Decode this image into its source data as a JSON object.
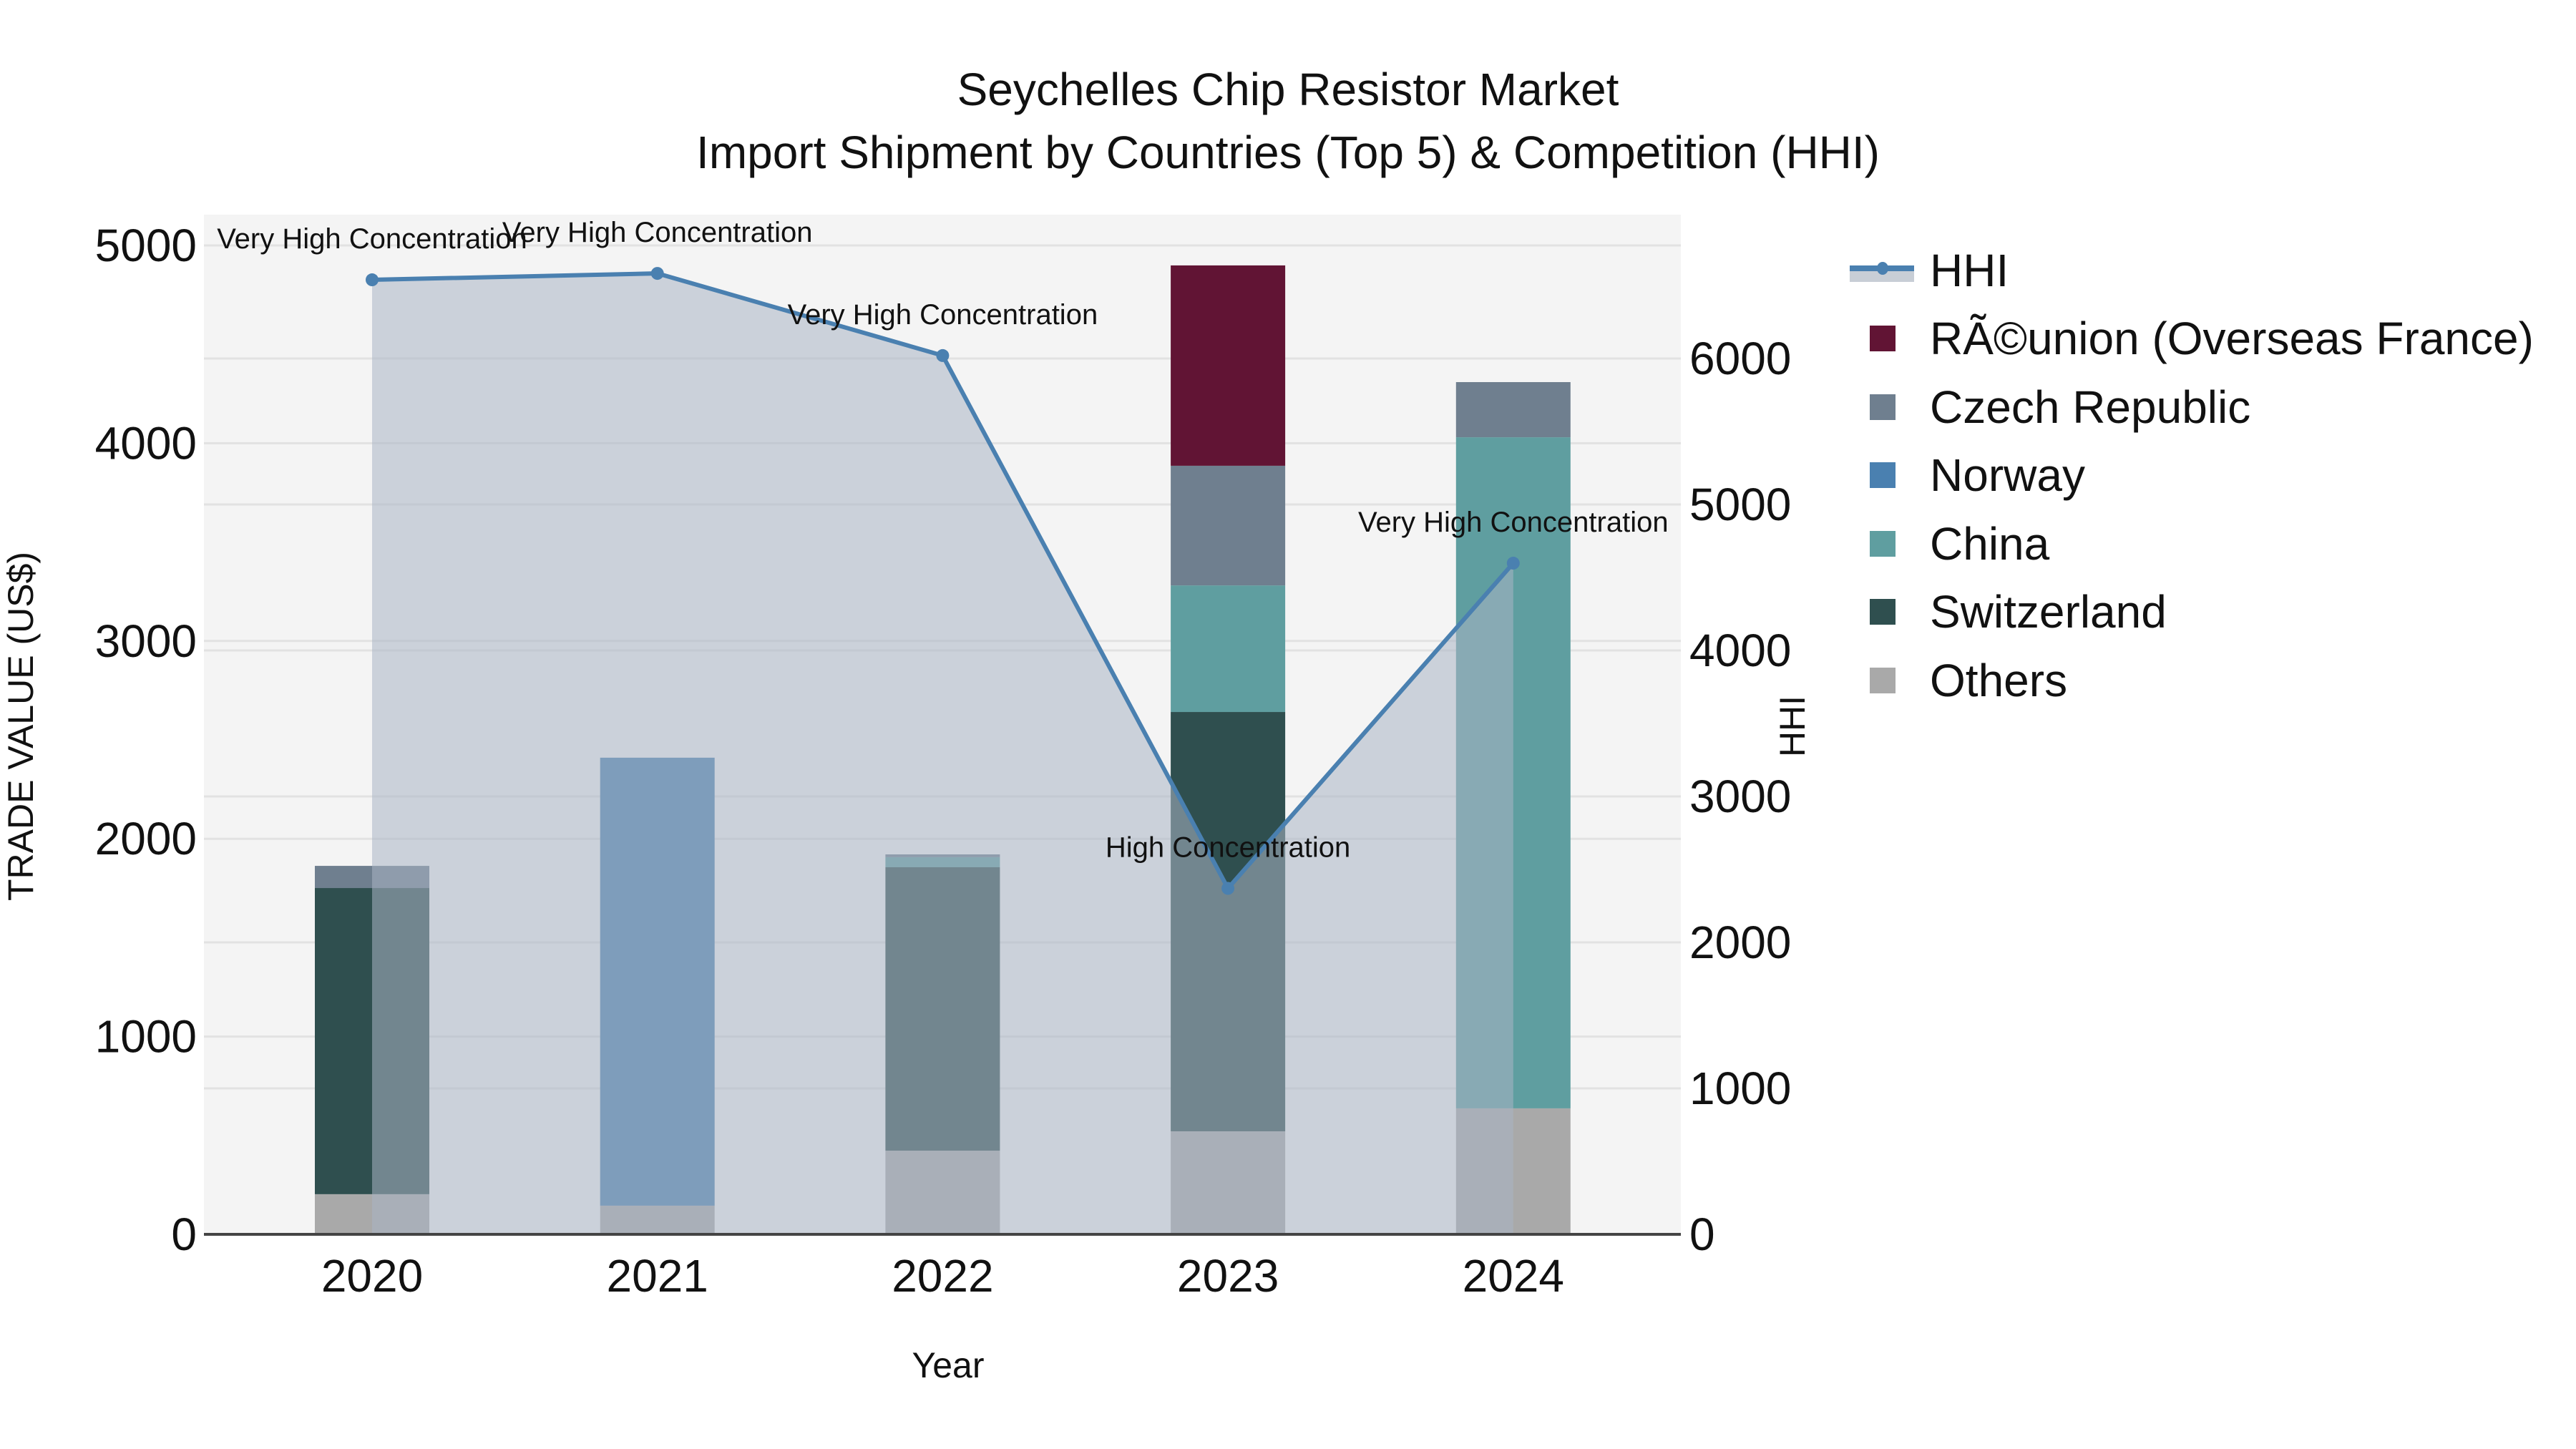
{
  "title": {
    "line1": "Seychelles Chip Resistor Market",
    "line2": "Import Shipment by Countries (Top 5) & Competition (HHI)"
  },
  "axes": {
    "x_title": "Year",
    "y_left_title": "TRADE VALUE (US$)",
    "y_right_title": "HHI",
    "y_left_ticks": [
      0,
      1000,
      2000,
      3000,
      4000,
      5000
    ],
    "y_right_ticks": [
      0,
      1000,
      2000,
      3000,
      4000,
      5000,
      6000
    ]
  },
  "legend": {
    "items": [
      {
        "label": "HHI",
        "type": "line",
        "color": "#4a80b0"
      },
      {
        "label": "RÃ©union (Overseas France)",
        "type": "bar",
        "color": "#611434"
      },
      {
        "label": "Czech Republic",
        "type": "bar",
        "color": "#6f7f8f"
      },
      {
        "label": "Norway",
        "type": "bar",
        "color": "#4a80b0"
      },
      {
        "label": "China",
        "type": "bar",
        "color": "#5f9ea0"
      },
      {
        "label": "Switzerland",
        "type": "bar",
        "color": "#2f4f4f"
      },
      {
        "label": "Others",
        "type": "bar",
        "color": "#a9a9a9"
      }
    ]
  },
  "colors": {
    "plot_bg": "#f4f4f4",
    "grid": "#e2e2e2",
    "hhi_line": "#4a80b0",
    "hhi_area": "#a9b4c4"
  },
  "chart_data": {
    "type": "bar",
    "title": "Seychelles Chip Resistor Market — Import Shipment by Countries (Top 5) & Competition (HHI)",
    "xlabel": "Year",
    "ylabel": "TRADE VALUE (US$)",
    "y2label": "HHI",
    "ylim": [
      0,
      5150
    ],
    "y2lim": [
      0,
      6950
    ],
    "stacked": true,
    "grid": true,
    "legend_position": "right",
    "categories": [
      "2020",
      "2021",
      "2022",
      "2023",
      "2024"
    ],
    "series": [
      {
        "name": "Others",
        "color": "#a9a9a9",
        "values": [
          203,
          145,
          423,
          521,
          637
        ]
      },
      {
        "name": "Switzerland",
        "color": "#2f4f4f",
        "values": [
          1548,
          0,
          1433,
          2120,
          0
        ]
      },
      {
        "name": "China",
        "color": "#5f9ea0",
        "values": [
          0,
          0,
          51,
          640,
          3393
        ]
      },
      {
        "name": "Norway",
        "color": "#4a80b0",
        "values": [
          0,
          2265,
          0,
          0,
          0
        ]
      },
      {
        "name": "Czech Republic",
        "color": "#6f7f8f",
        "values": [
          112,
          0,
          14,
          605,
          279
        ]
      },
      {
        "name": "RÃ©union (Overseas France)",
        "color": "#611434",
        "values": [
          0,
          0,
          0,
          1013,
          0
        ]
      }
    ],
    "line_series": {
      "name": "HHI",
      "axis": "right",
      "type": "line+area",
      "values": [
        6539,
        6583,
        6020,
        2370,
        4598
      ],
      "annotations": [
        "Very High Concentration",
        "Very High Concentration",
        "Very High Concentration",
        "High Concentration",
        "Very High Concentration"
      ]
    }
  }
}
